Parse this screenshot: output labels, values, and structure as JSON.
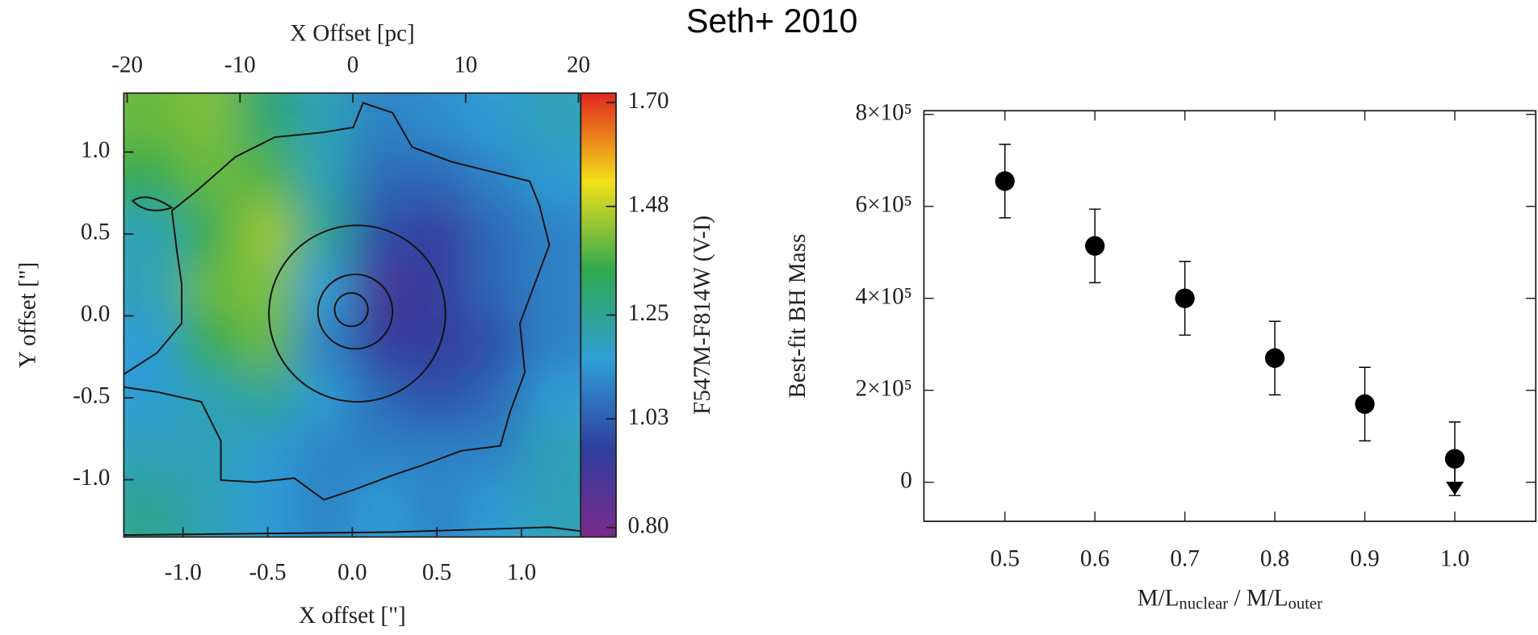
{
  "title": "Seth+ 2010",
  "chart_data": [
    {
      "type": "heatmap",
      "xlabel": "X offset [\"]",
      "ylabel": "Y offset [\"]",
      "x2label": "X Offset [pc]",
      "colorbar_label": "F547M-F814W (V-I)",
      "xlim": [
        -1.35,
        1.35
      ],
      "xticks": [
        {
          "value": -1,
          "label": "-1.0"
        },
        -0.5,
        {
          "value": 0,
          "label": "0.0"
        },
        0.5,
        {
          "value": 1,
          "label": "1.0"
        }
      ],
      "ylim": [
        -1.35,
        1.36
      ],
      "yticks": [
        {
          "value": -1,
          "label": "-1.0"
        },
        -0.5,
        {
          "value": 0,
          "label": "0.0"
        },
        0.5,
        {
          "value": 1,
          "label": "1.0"
        }
      ],
      "x2lim": [
        -20.3,
        20.2
      ],
      "x2ticks": [
        -20,
        -10,
        0,
        10,
        20
      ],
      "zlim": [
        0.78,
        1.72
      ],
      "zticks": [
        {
          "value": 0.8,
          "label": "0.80"
        },
        1.03,
        1.25,
        1.48,
        {
          "value": 1.7,
          "label": "1.70"
        }
      ],
      "colormap": [
        "#7b2a8c",
        "#2f3f9e",
        "#2f9fd6",
        "#2fa84f",
        "#f2e019",
        "#e2261d"
      ],
      "z": [
        [
          1.4,
          1.42,
          1.3,
          1.2,
          1.1,
          1.12,
          1.15,
          1.2
        ],
        [
          1.35,
          1.4,
          1.38,
          1.2,
          1.05,
          1.05,
          1.1,
          1.15
        ],
        [
          1.2,
          1.35,
          1.45,
          1.25,
          1.0,
          0.95,
          1.05,
          1.1
        ],
        [
          1.2,
          1.4,
          1.42,
          1.15,
          0.9,
          0.95,
          1.05,
          1.1
        ],
        [
          1.15,
          1.35,
          1.4,
          1.1,
          0.95,
          0.95,
          1.0,
          1.1
        ],
        [
          1.15,
          1.2,
          1.25,
          1.15,
          1.05,
          1.0,
          1.05,
          1.15
        ],
        [
          1.2,
          1.2,
          1.15,
          1.1,
          1.1,
          1.1,
          1.1,
          1.2
        ],
        [
          1.25,
          1.2,
          1.15,
          1.1,
          1.15,
          1.1,
          1.15,
          1.2
        ]
      ]
    },
    {
      "type": "scatter",
      "ylabel": "Best-fit BH Mass",
      "xlabel": [
        "M/L",
        "nuclear",
        " / M/L",
        "outer"
      ],
      "x": [
        0.5,
        0.6,
        0.7,
        0.8,
        0.9,
        1.0
      ],
      "values": [
        655000,
        514000,
        400000,
        270000,
        170000,
        51000
      ],
      "errors": [
        80000,
        80000,
        80000,
        80000,
        80000,
        80000
      ],
      "upper_limits": [
        false,
        false,
        false,
        false,
        false,
        true
      ],
      "color": "#000000",
      "xlim": [
        0.41,
        1.09
      ],
      "xticks": [
        0.5,
        0.6,
        0.7,
        0.8,
        0.9,
        {
          "value": 1,
          "label": "1.0"
        }
      ],
      "ylim": [
        -85000,
        808000
      ],
      "yticks": [
        0,
        {
          "value": 200000,
          "label": "2×10⁵"
        },
        {
          "value": 400000,
          "label": "4×10⁵"
        },
        {
          "value": 600000,
          "label": "6×10⁵"
        },
        {
          "value": 800000,
          "label": "8×10⁵"
        }
      ]
    }
  ]
}
